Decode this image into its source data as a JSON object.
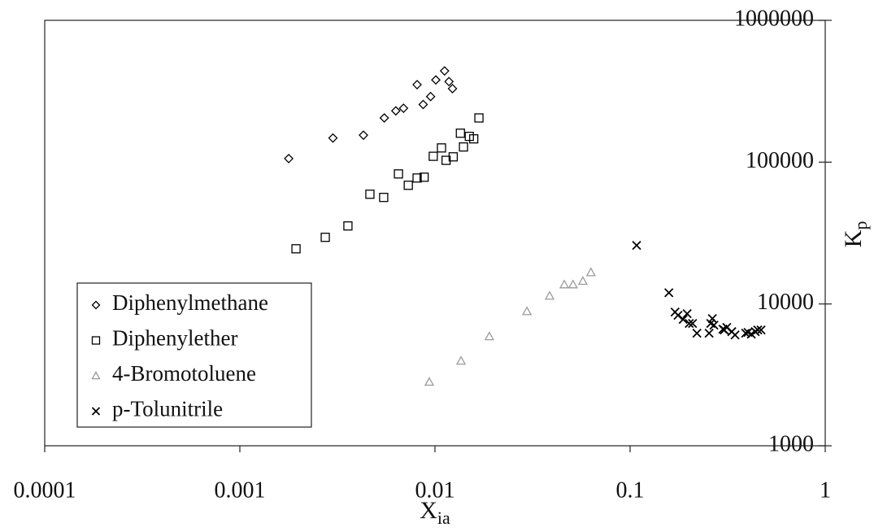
{
  "chart_data": {
    "type": "scatter",
    "x_label": {
      "text": "X",
      "subscript": "ia"
    },
    "y_label": {
      "text": "K",
      "subscript": "p"
    },
    "x_scale": "log",
    "y_scale": "log",
    "xlim": [
      0.0001,
      1
    ],
    "xticks": [
      0.0001,
      0.001,
      0.01,
      0.1,
      1
    ],
    "ylim": [
      1000,
      1000000
    ],
    "yticks": [
      1000,
      10000,
      100000,
      1000000
    ],
    "y_axis_side": "right",
    "legend": "lower left",
    "series": [
      {
        "name": "Diphenylmethane",
        "marker": "diamond",
        "color": "#000000",
        "x": [
          0.00178,
          0.003,
          0.0043,
          0.0055,
          0.0063,
          0.0069,
          0.0081,
          0.0087,
          0.0095,
          0.0101,
          0.0112,
          0.0118,
          0.0123
        ],
        "values": [
          106000,
          148000,
          155000,
          205000,
          230000,
          240000,
          352000,
          255000,
          290000,
          380000,
          440000,
          370000,
          330000
        ]
      },
      {
        "name": "Diphenylether",
        "marker": "square",
        "color": "#000000",
        "x": [
          0.00194,
          0.00274,
          0.00358,
          0.00464,
          0.00546,
          0.0065,
          0.0073,
          0.0081,
          0.0088,
          0.0098,
          0.0108,
          0.0114,
          0.0124,
          0.0135,
          0.014,
          0.015,
          0.0158,
          0.0168
        ],
        "values": [
          24500,
          29500,
          35500,
          59400,
          56400,
          82600,
          68700,
          77300,
          78300,
          110000,
          126000,
          103000,
          109000,
          160000,
          128000,
          152000,
          146000,
          205000
        ]
      },
      {
        "name": "4-Bromotoluene",
        "marker": "triangle",
        "color": "#9a9a9a",
        "x": [
          0.00935,
          0.0136,
          0.019,
          0.0296,
          0.0387,
          0.046,
          0.051,
          0.0573,
          0.063
        ],
        "values": [
          2820,
          3970,
          5900,
          8870,
          11400,
          13700,
          13700,
          14500,
          16700
        ]
      },
      {
        "name": "p-Tolunitrile",
        "marker": "x",
        "color": "#000000",
        "x": [
          0.108,
          0.158,
          0.17,
          0.176,
          0.187,
          0.196,
          0.201,
          0.209,
          0.22,
          0.254,
          0.259,
          0.264,
          0.269,
          0.299,
          0.304,
          0.313,
          0.332,
          0.345,
          0.391,
          0.402,
          0.418,
          0.438,
          0.451,
          0.469
        ],
        "values": [
          25900,
          12000,
          8770,
          8320,
          7790,
          8540,
          7290,
          7290,
          6220,
          6220,
          7290,
          7890,
          7090,
          6640,
          6560,
          6830,
          6380,
          6050,
          6220,
          6300,
          6130,
          6380,
          6560,
          6560
        ]
      }
    ]
  }
}
